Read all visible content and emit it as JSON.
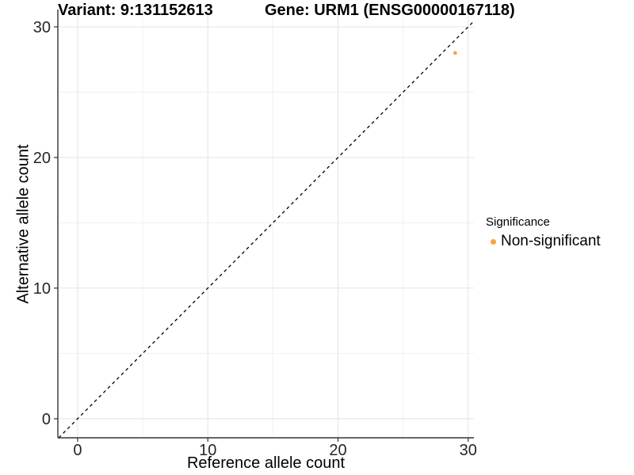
{
  "figure": {
    "background": "#FFFFFF"
  },
  "titles": {
    "left": "Variant: 9:131152613",
    "right": "Gene: URM1 (ENSG00000167118)"
  },
  "axes": {
    "x_title": "Reference allele count",
    "y_title": "Alternative allele count"
  },
  "legend": {
    "title": "Significance",
    "items": [
      {
        "label": "Non-significant",
        "color": "#F9A242"
      }
    ]
  },
  "chart_data": {
    "type": "scatter",
    "title": "Variant: 9:131152613   |   Gene: URM1 (ENSG00000167118)",
    "xlabel": "Reference allele count",
    "ylabel": "Alternative allele count",
    "points": [
      {
        "x": 29,
        "y": 28,
        "series": "Non-significant",
        "color": "#F9A242"
      }
    ],
    "reference_line": {
      "kind": "identity",
      "style": "dashed",
      "color": "#000000"
    },
    "x_ticks": [
      0,
      10,
      20,
      30
    ],
    "y_ticks": [
      0,
      10,
      20,
      30
    ],
    "minor_grid_x": [
      5,
      15,
      25
    ],
    "minor_grid_y": [
      5,
      15,
      25
    ],
    "xlim": [
      -1.52,
      30.44
    ],
    "ylim": [
      -1.46,
      31.33
    ],
    "grid": true,
    "legend_position": "right",
    "point_radius": 2.4,
    "legend_key_radius": 3.5,
    "colors": {
      "grid_major": "#E4E4E4",
      "grid_minor": "#F1F1F1",
      "axis_line": "#333333",
      "tick_mark": "#333333",
      "tick_text": "#262626",
      "point": "#F9A242",
      "reference_line": "#000000"
    }
  }
}
